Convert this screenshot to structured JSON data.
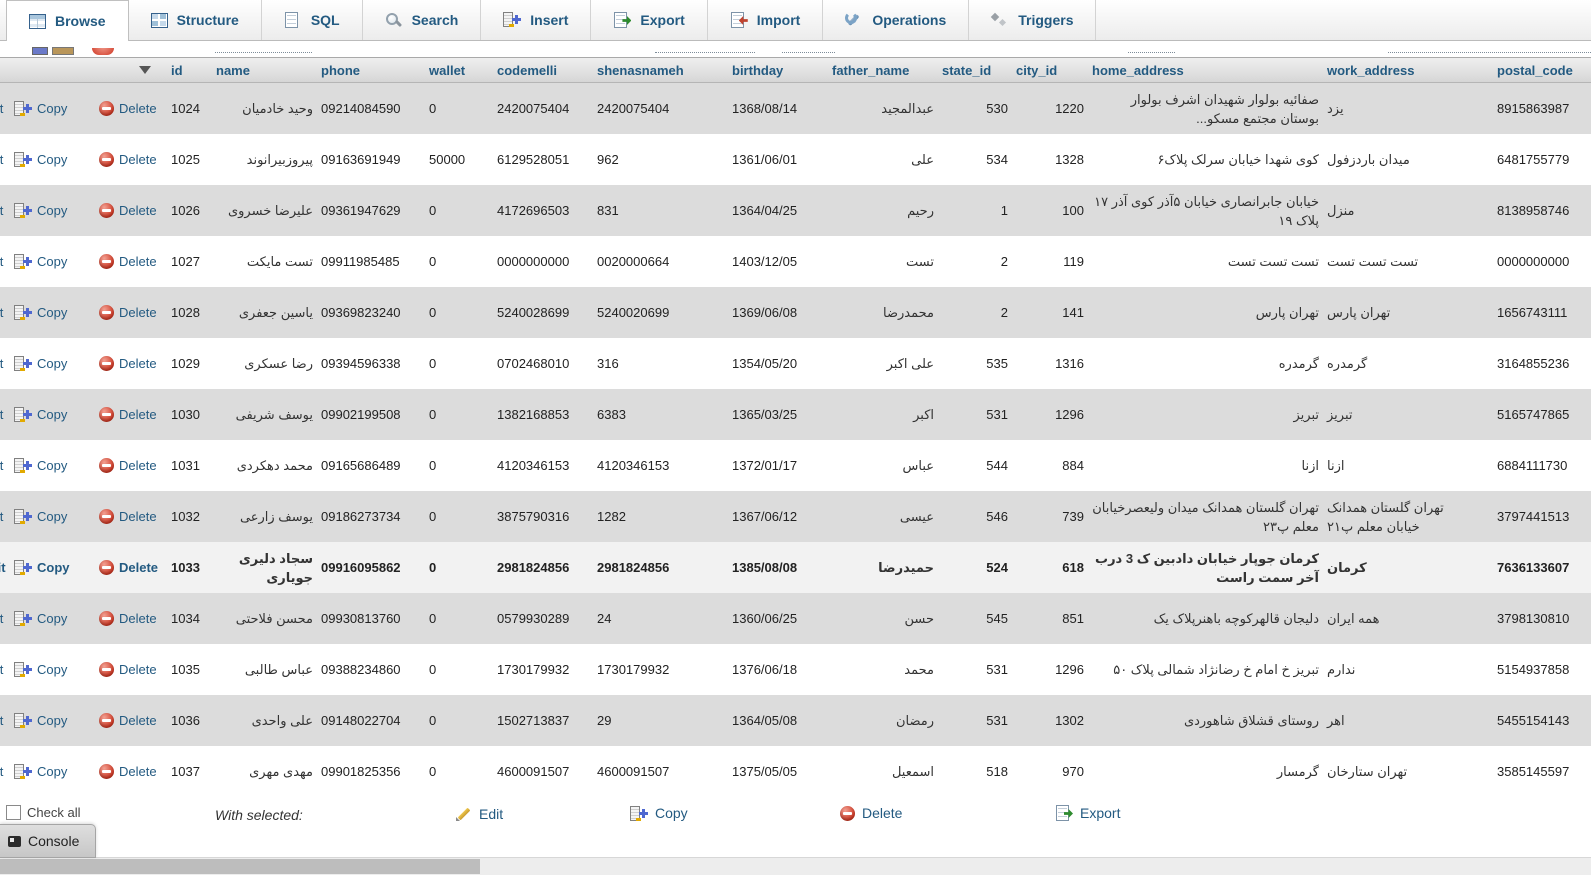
{
  "tabs": [
    {
      "label": "Browse",
      "icon": "browse-icon",
      "active": true
    },
    {
      "label": "Structure",
      "icon": "structure-icon",
      "active": false
    },
    {
      "label": "SQL",
      "icon": "sql-icon",
      "active": false
    },
    {
      "label": "Search",
      "icon": "search-icon",
      "active": false
    },
    {
      "label": "Insert",
      "icon": "insert-icon",
      "active": false
    },
    {
      "label": "Export",
      "icon": "export-icon",
      "active": false
    },
    {
      "label": "Import",
      "icon": "import-icon",
      "active": false
    },
    {
      "label": "Operations",
      "icon": "operations-icon",
      "active": false
    },
    {
      "label": "Triggers",
      "icon": "triggers-icon",
      "active": false
    }
  ],
  "header_columns": [
    "id",
    "name",
    "phone",
    "wallet",
    "codemelli",
    "shenasnameh",
    "birthday",
    "father_name",
    "state_id",
    "city_id",
    "home_address",
    "work_address",
    "postal_code"
  ],
  "row_action_labels": {
    "edit": "Edit",
    "copy": "Copy",
    "delete": "Delete"
  },
  "highlighted_id": "1033",
  "rows": [
    {
      "id": "1024",
      "name": "وحید خادمیان",
      "phone": "09214084590",
      "wallet": "0",
      "codemelli": "2420075404",
      "shenasnameh": "2420075404",
      "birthday": "1368/08/14",
      "father_name": "عبدالمجید",
      "state_id": "530",
      "city_id": "1220",
      "home_address": "صفائیه بولوار شهیدان اشرف بولوار بوستان مجتمع مسکو...",
      "work_address": "یزد",
      "postal_code": "8915863987"
    },
    {
      "id": "1025",
      "name": "پیروزبیرانوند",
      "phone": "09163691949",
      "wallet": "50000",
      "codemelli": "6129528051",
      "shenasnameh": "962",
      "birthday": "1361/06/01",
      "father_name": "علی",
      "state_id": "534",
      "city_id": "1328",
      "home_address": "کوی شهدا خیابان سرلک پلاک۶",
      "work_address": "میدان باردزفول",
      "postal_code": "6481755779"
    },
    {
      "id": "1026",
      "name": "علیرضا خسروی",
      "phone": "09361947629",
      "wallet": "0",
      "codemelli": "4172696503",
      "shenasnameh": "831",
      "birthday": "1364/04/25",
      "father_name": "رحیم",
      "state_id": "1",
      "city_id": "100",
      "home_address": "خیابان جابرانصاری خیابان ۵آذر کوی آذر ۱۷ پلاک ۱۹",
      "work_address": "منزل",
      "postal_code": "8138958746"
    },
    {
      "id": "1027",
      "name": "تست مایکت",
      "phone": "09911985485",
      "wallet": "0",
      "codemelli": "0000000000",
      "shenasnameh": "0020000664",
      "birthday": "1403/12/05",
      "father_name": "تست",
      "state_id": "2",
      "city_id": "119",
      "home_address": "تست تست تست",
      "work_address": "تست تست تست",
      "postal_code": "0000000000"
    },
    {
      "id": "1028",
      "name": "یاسین جعفری",
      "phone": "09369823240",
      "wallet": "0",
      "codemelli": "5240028699",
      "shenasnameh": "5240020699",
      "birthday": "1369/06/08",
      "father_name": "محمدرضا",
      "state_id": "2",
      "city_id": "141",
      "home_address": "تهران پارس",
      "work_address": "تهران پارس",
      "postal_code": "1656743111"
    },
    {
      "id": "1029",
      "name": "رضا عسکری",
      "phone": "09394596338",
      "wallet": "0",
      "codemelli": "0702468010",
      "shenasnameh": "316",
      "birthday": "1354/05/20",
      "father_name": "علی اکبر",
      "state_id": "535",
      "city_id": "1316",
      "home_address": "گرمدره",
      "work_address": "گرمدره",
      "postal_code": "3164855236"
    },
    {
      "id": "1030",
      "name": "یوسف شریفی",
      "phone": "09902199508",
      "wallet": "0",
      "codemelli": "1382168853",
      "shenasnameh": "6383",
      "birthday": "1365/03/25",
      "father_name": "اکبر",
      "state_id": "531",
      "city_id": "1296",
      "home_address": "تبریز",
      "work_address": "تبریز",
      "postal_code": "5165747865"
    },
    {
      "id": "1031",
      "name": "محمد دهکردی",
      "phone": "09165686489",
      "wallet": "0",
      "codemelli": "4120346153",
      "shenasnameh": "4120346153",
      "birthday": "1372/01/17",
      "father_name": "عباس",
      "state_id": "544",
      "city_id": "884",
      "home_address": "ازنا",
      "work_address": "ازنا",
      "postal_code": "6884111730"
    },
    {
      "id": "1032",
      "name": "یوسف زارعی",
      "phone": "09186273734",
      "wallet": "0",
      "codemelli": "3875790316",
      "shenasnameh": "1282",
      "birthday": "1367/06/12",
      "father_name": "عیسی",
      "state_id": "546",
      "city_id": "739",
      "home_address": "تهران گلستان همدانک میدان ولیعصرخیابان معلم پ۲۳",
      "work_address": "تهران گلستان همدانک خیابان معلم پ۲۱",
      "postal_code": "3797441513"
    },
    {
      "id": "1033",
      "name": "سجاد دلیری جویاری",
      "phone": "09916095862",
      "wallet": "0",
      "codemelli": "2981824856",
      "shenasnameh": "2981824856",
      "birthday": "1385/08/08",
      "father_name": "حمیدرضا",
      "state_id": "524",
      "city_id": "618",
      "home_address": "کرمان جوپار خیابان دادبین ک 3 درب آخر سمت راست",
      "work_address": "کرمان",
      "postal_code": "7636133607"
    },
    {
      "id": "1034",
      "name": "محسن فلاحتی",
      "phone": "09930813760",
      "wallet": "0",
      "codemelli": "0579930289",
      "shenasnameh": "24",
      "birthday": "1360/06/25",
      "father_name": "حسن",
      "state_id": "545",
      "city_id": "851",
      "home_address": "دلیجان قالهرکوچه باهنرپلاک یک",
      "work_address": "همه ایران",
      "postal_code": "3798130810"
    },
    {
      "id": "1035",
      "name": "عباس طالبی",
      "phone": "09388234860",
      "wallet": "0",
      "codemelli": "1730179932",
      "shenasnameh": "1730179932",
      "birthday": "1376/06/18",
      "father_name": "محمد",
      "state_id": "531",
      "city_id": "1296",
      "home_address": "تبریز خ امام خ رضانژاد شمالی پلاک ۵۰",
      "work_address": "ندارم",
      "postal_code": "5154937858"
    },
    {
      "id": "1036",
      "name": "علی واحدی",
      "phone": "09148022704",
      "wallet": "0",
      "codemelli": "1502713837",
      "shenasnameh": "29",
      "birthday": "1364/05/08",
      "father_name": "رمضان",
      "state_id": "531",
      "city_id": "1302",
      "home_address": "روستای قشلاق شاهوردی",
      "work_address": "اهر",
      "postal_code": "5455154143"
    },
    {
      "id": "1037",
      "name": "مهدی مهری",
      "phone": "09901825356",
      "wallet": "0",
      "codemelli": "4600091507",
      "shenasnameh": "4600091507",
      "birthday": "1375/05/05",
      "father_name": "اسمعیل",
      "state_id": "518",
      "city_id": "970",
      "home_address": "گرمسار",
      "work_address": "تهران ستارخان",
      "postal_code": "3585145597"
    }
  ],
  "footer": {
    "check_all": "Check all",
    "with_selected": "With selected:",
    "edit": "Edit",
    "copy": "Copy",
    "delete": "Delete",
    "export": "Export"
  },
  "console_label": "Console",
  "colors": {
    "accent": "#235a81",
    "row_alt": "#dcdcdc",
    "delete_red": "#cf3723",
    "header_bg": "#d6d6d6"
  }
}
